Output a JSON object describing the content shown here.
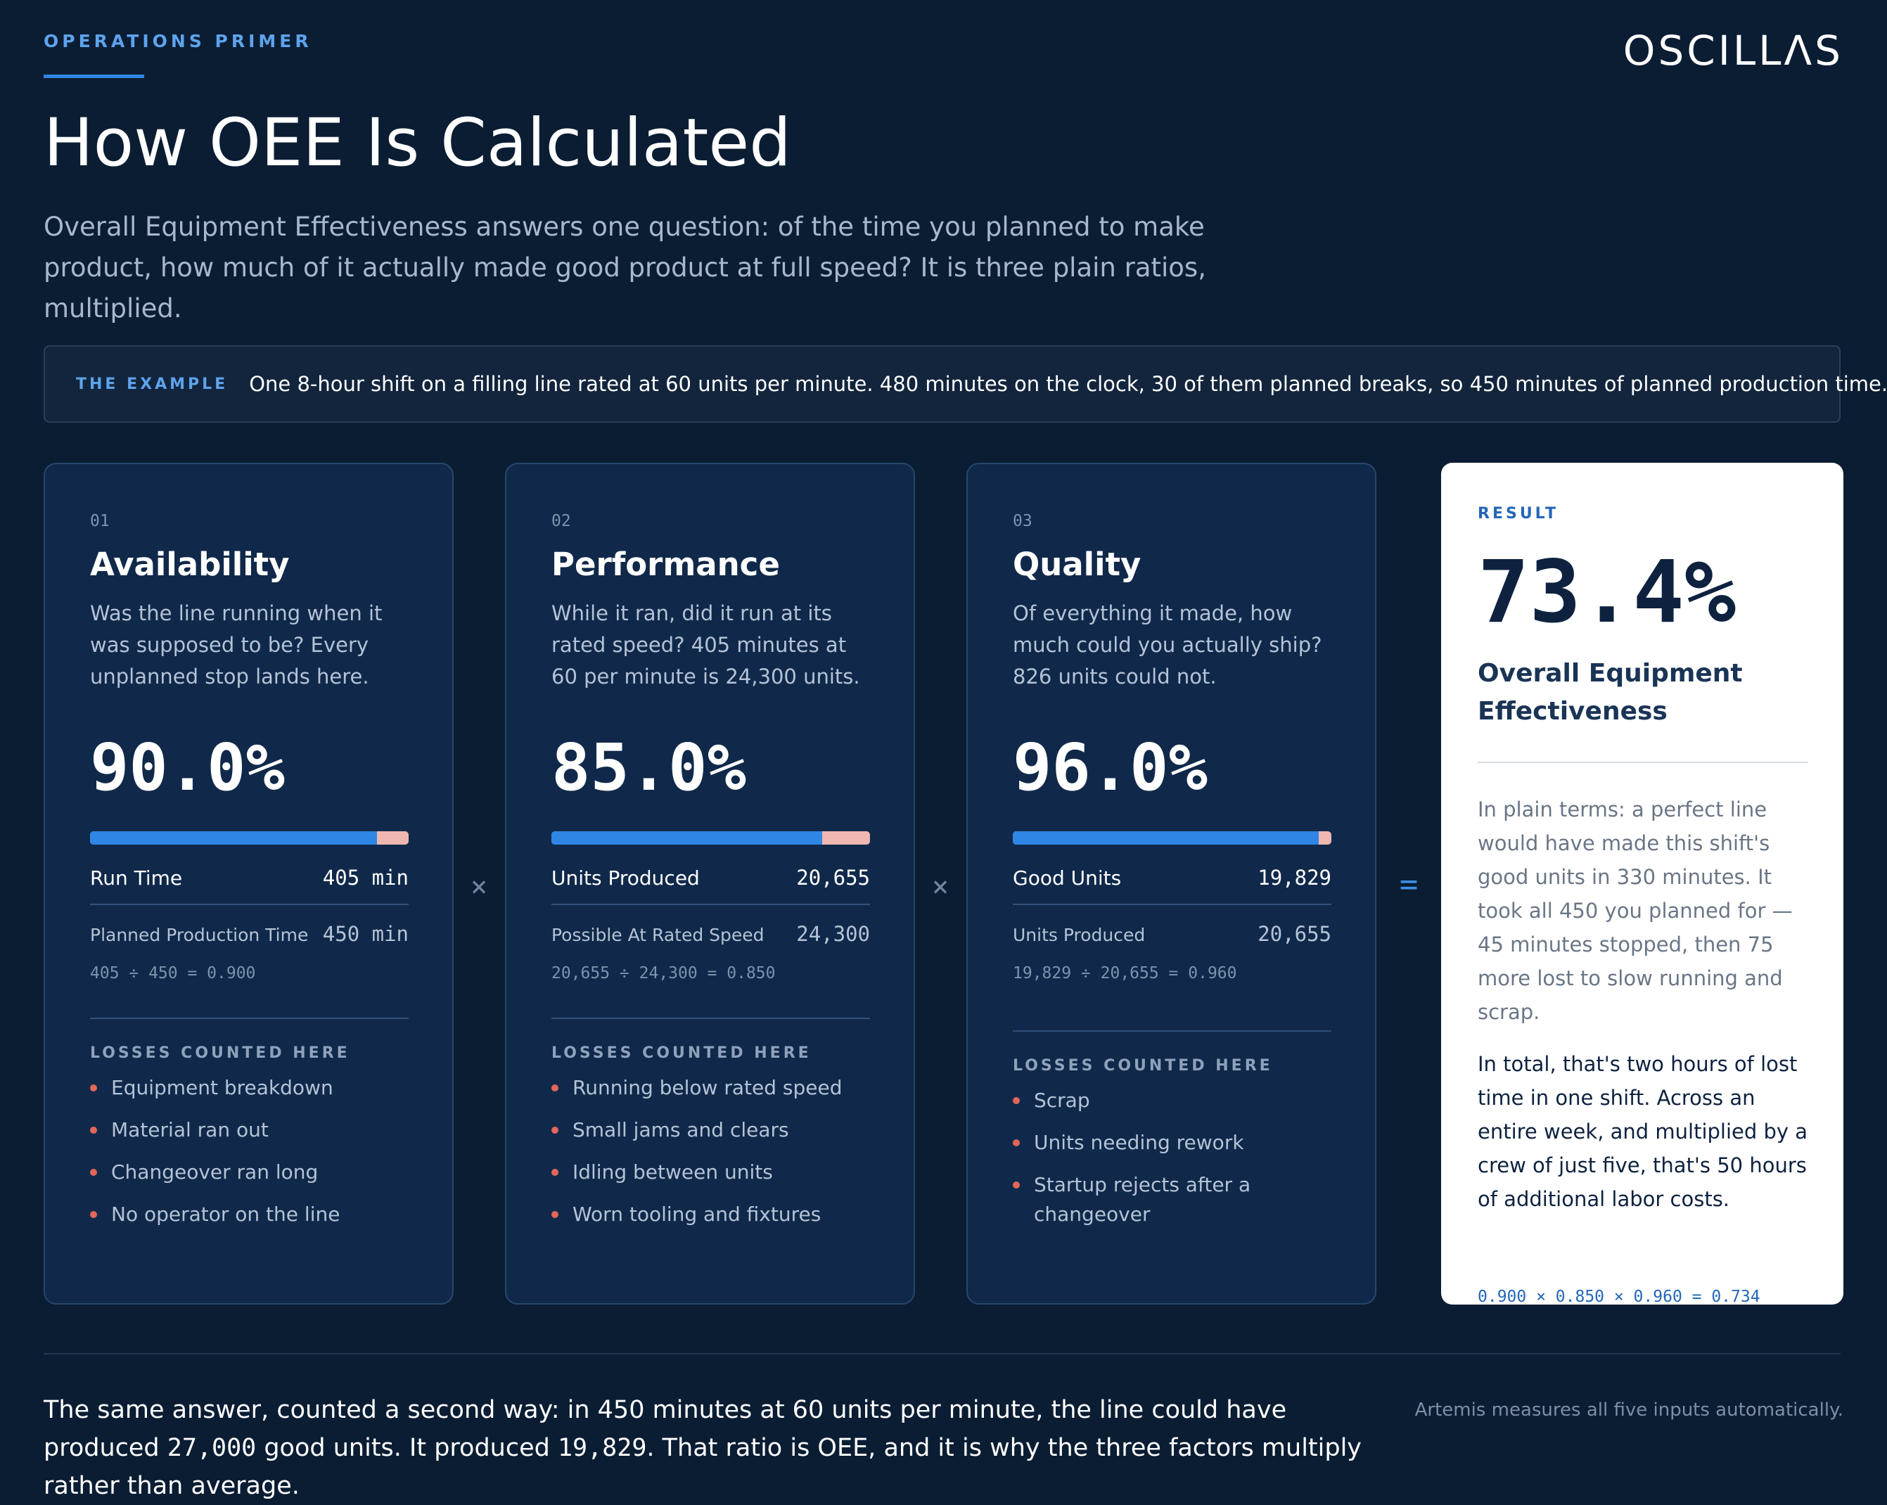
{
  "header": {
    "kicker": "OPERATIONS PRIMER",
    "logo": "OSCILLΛS",
    "title": "How OEE Is Calculated",
    "intro": "Overall Equipment Effectiveness answers one question: of the time you planned to make product, how much of it actually made good product at full speed? It is three plain ratios, multiplied."
  },
  "example": {
    "label": "THE EXAMPLE",
    "text": "One 8-hour shift on a filling line rated at 60 units per minute. 480 minutes on the clock, 30 of them planned breaks, so 450 minutes of planned production time."
  },
  "cards": [
    {
      "num": "01",
      "title": "Availability",
      "desc": "Was the line running when it was supposed to be? Every unplanned stop lands here.",
      "pct": "90.0%",
      "fraction": 0.9,
      "main_label": "Run Time",
      "main_value": "405 min",
      "sub_label": "Planned Production Time",
      "sub_value": "450 min",
      "formula": "405 ÷ 450 = 0.900",
      "losses_label": "LOSSES COUNTED HERE",
      "losses": [
        "Equipment breakdown",
        "Material ran out",
        "Changeover ran long",
        "No operator on the line"
      ]
    },
    {
      "num": "02",
      "title": "Performance",
      "desc": "While it ran, did it run at its rated speed? 405 minutes at 60 per minute is 24,300 units.",
      "pct": "85.0%",
      "fraction": 0.85,
      "main_label": "Units Produced",
      "main_value": "20,655",
      "sub_label": "Possible At Rated Speed",
      "sub_value": "24,300",
      "formula": "20,655 ÷ 24,300 = 0.850",
      "losses_label": "LOSSES COUNTED HERE",
      "losses": [
        "Running below rated speed",
        "Small jams and clears",
        "Idling between units",
        "Worn tooling and fixtures"
      ]
    },
    {
      "num": "03",
      "title": "Quality",
      "desc": "Of everything it made, how much could you actually ship? 826 units could not.",
      "pct": "96.0%",
      "fraction": 0.96,
      "main_label": "Good Units",
      "main_value": "19,829",
      "sub_label": "Units Produced",
      "sub_value": "20,655",
      "formula": "19,829 ÷ 20,655 = 0.960",
      "losses_label": "LOSSES COUNTED HERE",
      "losses": [
        "Scrap",
        "Units needing rework",
        "Startup rejects after a changeover"
      ]
    }
  ],
  "operators": {
    "times": "×",
    "equals": "="
  },
  "result": {
    "label": "RESULT",
    "pct": "73.4%",
    "name": "Overall Equipment Effectiveness",
    "p1": "In plain terms: a perfect line would have made this shift's good units in 330 minutes. It took all 450 you planned for — 45 minutes stopped, then 75 more lost to slow running and scrap.",
    "p2": "In total, that's two hours of lost time in one shift. Across an entire week, and multiplied by a crew of just five, that's 50 hours of additional labor costs.",
    "formula": "0.900 × 0.850 × 0.960 = 0.734"
  },
  "footer": {
    "text_a": "The same answer, counted a second way: in 450 minutes at 60 units per minute, the line could have produced ",
    "num_a": "27,000",
    "text_b": " good units. It produced ",
    "num_b": "19,829",
    "text_c": ". That ratio is OEE, and it is why the three factors multiply rather than average.",
    "note": "Artemis measures all five inputs automatically."
  },
  "colors": {
    "background": "#0b1d33",
    "card": "#10294a",
    "accent_blue": "#2f86e4",
    "loss_pink": "#f0b7b1",
    "bullet_red": "#e3665a"
  }
}
